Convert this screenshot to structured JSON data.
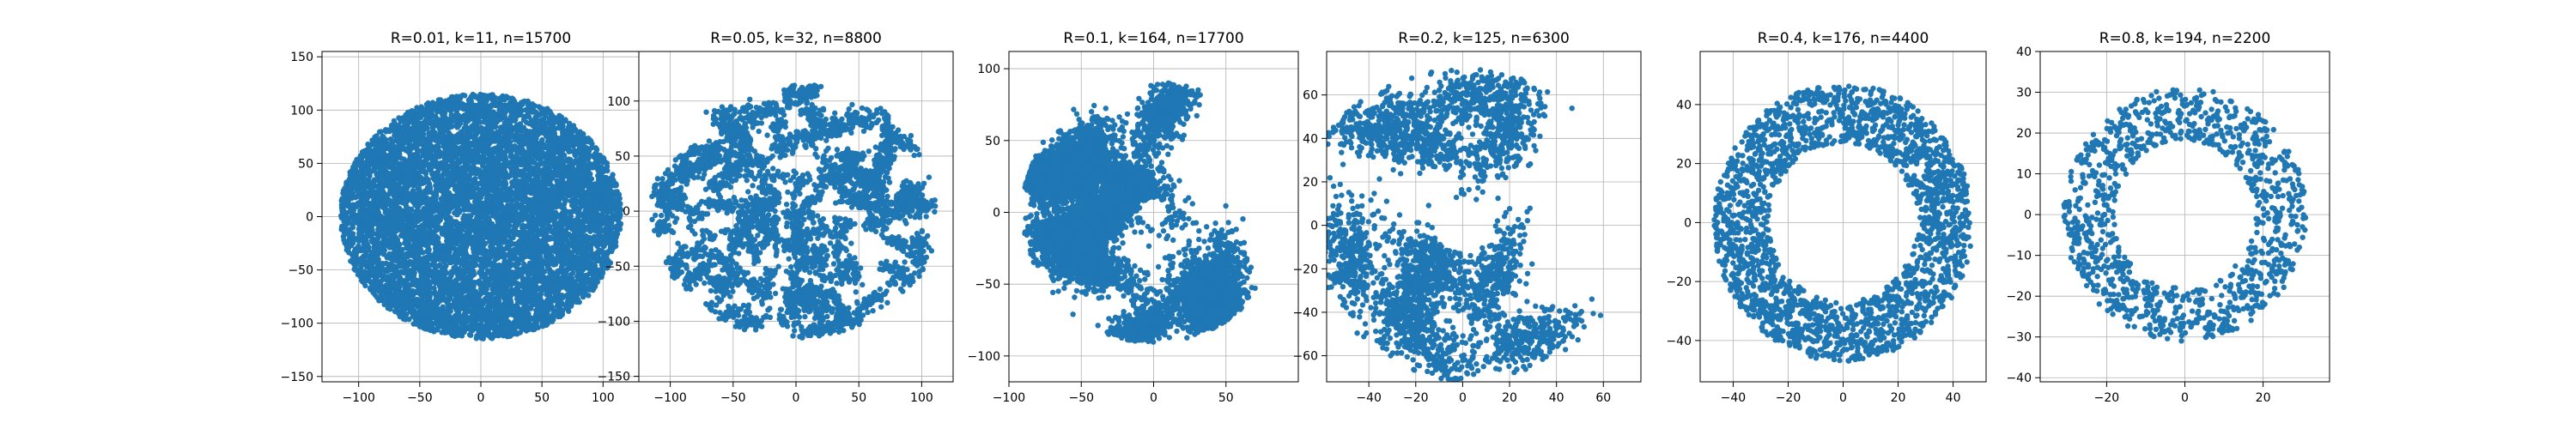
{
  "figure": {
    "marker_color": "#1f77b4",
    "grid": true,
    "background": "#ffffff"
  },
  "chart_data": [
    {
      "type": "scatter",
      "title": "R=0.01,  k=11, n=15700",
      "xlabel": "",
      "ylabel": "",
      "xlim": [
        -130,
        130
      ],
      "ylim": [
        -155,
        155
      ],
      "xticks": [
        -100,
        -50,
        0,
        50,
        100
      ],
      "yticks": [
        -150,
        -100,
        -50,
        0,
        50,
        100,
        150
      ],
      "shape": {
        "kind": "disk",
        "inner_radius": 0,
        "outer_radius": 115,
        "cluster_count": 0,
        "seed": 11
      },
      "n": 15700,
      "k": 11
    },
    {
      "type": "scatter",
      "title": "R=0.05,  k=32, n=8800",
      "xlabel": "",
      "ylabel": "",
      "xlim": [
        -125,
        125
      ],
      "ylim": [
        -155,
        145
      ],
      "xticks": [
        -100,
        -50,
        0,
        50,
        100
      ],
      "yticks": [
        -150,
        -100,
        -50,
        0,
        50,
        100
      ],
      "shape": {
        "kind": "clustered-disk",
        "inner_radius": 0,
        "outer_radius": 112,
        "cluster_count": 200,
        "seed": 32
      },
      "n": 8800,
      "k": 32
    },
    {
      "type": "scatter",
      "title": "R=0.1,  k=164, n=17700",
      "xlabel": "",
      "ylabel": "",
      "xlim": [
        -100,
        100
      ],
      "ylim": [
        -118,
        112
      ],
      "xticks": [
        -100,
        -50,
        0,
        50
      ],
      "yticks": [
        -100,
        -50,
        0,
        50,
        100
      ],
      "shape": {
        "kind": "clustered-disk",
        "inner_radius": 12,
        "outer_radius": 88,
        "cluster_count": 14,
        "seed": 164
      },
      "n": 17700,
      "k": 164
    },
    {
      "type": "scatter",
      "title": "R=0.2,  k=125, n=6300",
      "xlabel": "",
      "ylabel": "",
      "xlim": [
        -58,
        76
      ],
      "ylim": [
        -72,
        80
      ],
      "xticks": [
        -40,
        -20,
        0,
        20,
        40,
        60
      ],
      "yticks": [
        -60,
        -40,
        -20,
        0,
        20,
        40,
        60
      ],
      "shape": {
        "kind": "clustered-ring",
        "inner_radius": 15,
        "outer_radius": 70,
        "cluster_count": 10,
        "seed": 125
      },
      "n": 6300,
      "k": 125
    },
    {
      "type": "scatter",
      "title": "R=0.4,  k=176, n=4400",
      "xlabel": "",
      "ylabel": "",
      "xlim": [
        -52,
        52
      ],
      "ylim": [
        -54,
        58
      ],
      "xticks": [
        -40,
        -20,
        0,
        20,
        40
      ],
      "yticks": [
        -40,
        -20,
        0,
        20,
        40
      ],
      "shape": {
        "kind": "ring",
        "inner_radius": 27,
        "outer_radius": 47,
        "cluster_count": 0,
        "seed": 176
      },
      "n": 4400,
      "k": 176
    },
    {
      "type": "scatter",
      "title": "R=0.8,  k=194, n=2200",
      "xlabel": "",
      "ylabel": "",
      "xlim": [
        -37,
        37
      ],
      "ylim": [
        -41,
        40
      ],
      "xticks": [
        -20,
        0,
        20
      ],
      "yticks": [
        -40,
        -30,
        -20,
        -10,
        0,
        10,
        20,
        30,
        40
      ],
      "shape": {
        "kind": "ring",
        "inner_radius": 18,
        "outer_radius": 31,
        "cluster_count": 0,
        "seed": 194
      },
      "n": 2200,
      "k": 194
    }
  ]
}
